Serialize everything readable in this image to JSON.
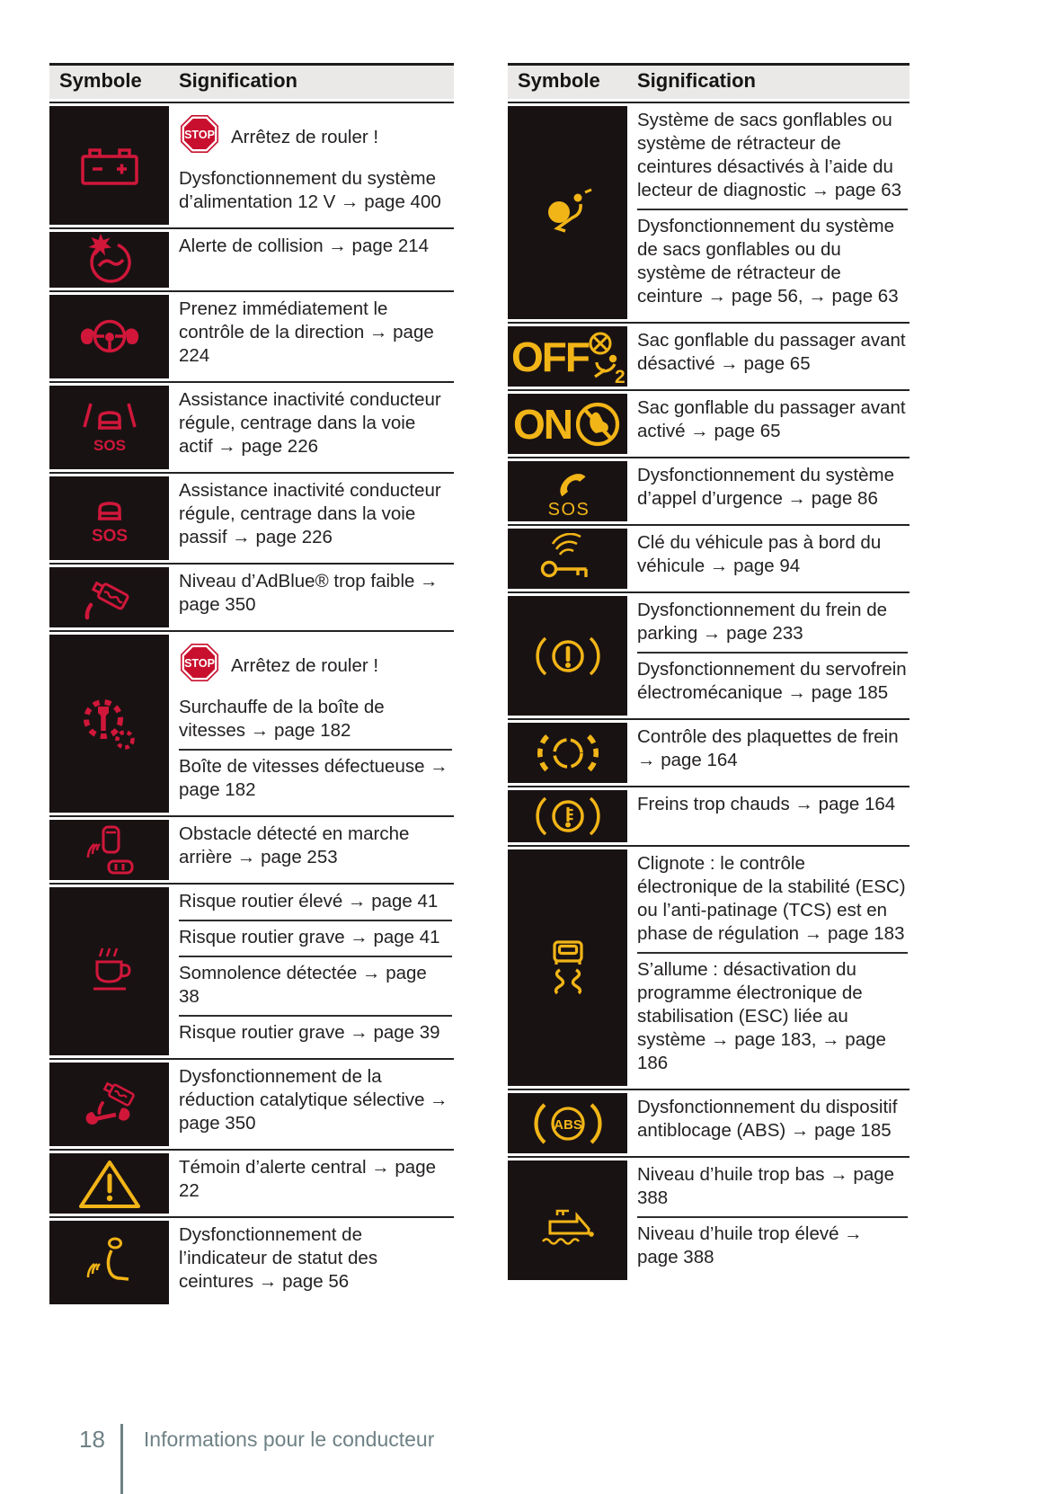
{
  "colors": {
    "red": "#d0173a",
    "yellow": "#f2b517",
    "stop_red": "#c8102e",
    "cell_bg": "#191213",
    "header_bg": "#eae9e7",
    "text": "#242122",
    "rule": "#232323",
    "footer": "#6e8185"
  },
  "icon_labels": {
    "stop-badge": {
      "text": "STOP"
    },
    "lane-centering-active-icon": {
      "text": "SOS"
    },
    "lane-centering-passive-icon": {
      "text": "SOS"
    },
    "airbag-off-icon": {
      "text": "OFF",
      "sub": "2"
    },
    "airbag-on-icon": {
      "text": "ON"
    },
    "sos-call-icon": {
      "text": "SOS"
    },
    "abs-icon": {
      "text": "ABS"
    }
  },
  "tables": [
    {
      "id": "left",
      "headers": {
        "symbol": "Symbole",
        "meaning": "Signification"
      },
      "rows": [
        {
          "icon": "battery-icon",
          "color": "red",
          "entries": [
            {
              "stop_label": "Arrêtez de rouler !",
              "text": "Dysfonctionnement du système d’alimentation 12 V → page 400"
            }
          ]
        },
        {
          "icon": "collision-alert-icon",
          "color": "red",
          "entries": [
            {
              "text": "Alerte de collision → page 214"
            }
          ]
        },
        {
          "icon": "steering-wheel-hands-icon",
          "color": "red",
          "entries": [
            {
              "text": "Prenez immédiatement le contrôle de la direction → page 224"
            }
          ]
        },
        {
          "icon": "lane-centering-active-icon",
          "color": "red",
          "entries": [
            {
              "text": "Assistance inactivité conducteur régule, centrage dans la voie actif → page 226"
            }
          ]
        },
        {
          "icon": "lane-centering-passive-icon",
          "color": "red",
          "entries": [
            {
              "text": "Assistance inactivité conducteur régule, centrage dans la voie passif → page 226"
            }
          ]
        },
        {
          "icon": "adblue-low-icon",
          "color": "red",
          "entries": [
            {
              "text": "Niveau d’AdBlue® trop faible → page 350"
            }
          ]
        },
        {
          "icon": "gearbox-wrench-icon",
          "color": "red",
          "entries": [
            {
              "stop_label": "Arrêtez de rouler !",
              "text": "Surchauffe de la boîte de vitesses → page 182"
            },
            {
              "text": "Boîte de vitesses défectueuse → page 182"
            }
          ]
        },
        {
          "icon": "rear-obstacle-icon",
          "color": "red",
          "entries": [
            {
              "text": "Obstacle détecté en marche arrière → page 253"
            }
          ]
        },
        {
          "icon": "drowsiness-coffee-icon",
          "color": "red",
          "entries": [
            {
              "text": "Risque routier élevé → page 41"
            },
            {
              "text": "Risque routier grave → page 41"
            },
            {
              "text": "Somnolence détectée → page 38"
            },
            {
              "text": "Risque routier grave → page 39"
            }
          ]
        },
        {
          "icon": "scr-malfunction-icon",
          "color": "red",
          "entries": [
            {
              "text": "Dysfonctionnement de la réduction catalytique sélective → page 350"
            }
          ]
        },
        {
          "icon": "warning-triangle-icon",
          "color": "yellow",
          "entries": [
            {
              "text": "Témoin d’alerte central → page 22"
            }
          ]
        },
        {
          "icon": "seatbelt-status-icon",
          "color": "yellow",
          "entries": [
            {
              "text": "Dysfonctionnement de l’indicateur de statut des ceintures → page 56"
            }
          ]
        }
      ]
    },
    {
      "id": "right",
      "headers": {
        "symbol": "Symbole",
        "meaning": "Signification"
      },
      "rows": [
        {
          "icon": "airbag-icon",
          "color": "yellow",
          "entries": [
            {
              "text": "Système de sacs gonflables ou système de rétracteur de ceintures désactivés à l’aide du lecteur de diagnostic → page 63"
            },
            {
              "text": "Dysfonctionnement du système de sacs gonflables ou du système de rétracteur de ceinture → page 56, → page 63"
            }
          ]
        },
        {
          "icon": "airbag-off-icon",
          "color": "yellow",
          "entries": [
            {
              "text": "Sac gonflable du passager avant désactivé → page 65"
            }
          ]
        },
        {
          "icon": "airbag-on-icon",
          "color": "yellow",
          "entries": [
            {
              "text": "Sac gonflable du passager avant activé → page 65"
            }
          ]
        },
        {
          "icon": "sos-call-icon",
          "color": "yellow",
          "entries": [
            {
              "text": "Dysfonctionnement du système d’appel d’urgence → page 86"
            }
          ]
        },
        {
          "icon": "key-not-onboard-icon",
          "color": "yellow",
          "entries": [
            {
              "text": "Clé du véhicule pas à bord du véhicule → page 94"
            }
          ]
        },
        {
          "icon": "parking-brake-icon",
          "color": "yellow",
          "entries": [
            {
              "text": "Dysfonctionnement du frein de parking → page 233"
            },
            {
              "text": "Dysfonctionnement du servofrein électromécanique → page 185"
            }
          ]
        },
        {
          "icon": "brake-pads-icon",
          "color": "yellow",
          "entries": [
            {
              "text": "Contrôle des plaquettes de frein → page 164"
            }
          ]
        },
        {
          "icon": "brake-overheat-icon",
          "color": "yellow",
          "entries": [
            {
              "text": "Freins trop chauds → page 164"
            }
          ]
        },
        {
          "icon": "esc-icon",
          "color": "yellow",
          "entries": [
            {
              "text": "Clignote : le contrôle électronique de la stabilité (ESC) ou l’anti-patinage (TCS) est en phase de régulation → page 183"
            },
            {
              "text": "S’allume : désactivation du programme électronique de stabilisation (ESC) liée au système → page 183, → page 186"
            }
          ]
        },
        {
          "icon": "abs-icon",
          "color": "yellow",
          "entries": [
            {
              "text": "Dysfonctionnement du dispositif antiblocage (ABS) → page 185"
            }
          ]
        },
        {
          "icon": "oil-level-icon",
          "color": "yellow",
          "entries": [
            {
              "text": "Niveau d’huile trop bas → page 388"
            },
            {
              "text": "Niveau d’huile trop élevé → page 388"
            }
          ]
        }
      ]
    }
  ],
  "footer": {
    "page_number": "18",
    "section_title": "Informations pour le conducteur"
  }
}
